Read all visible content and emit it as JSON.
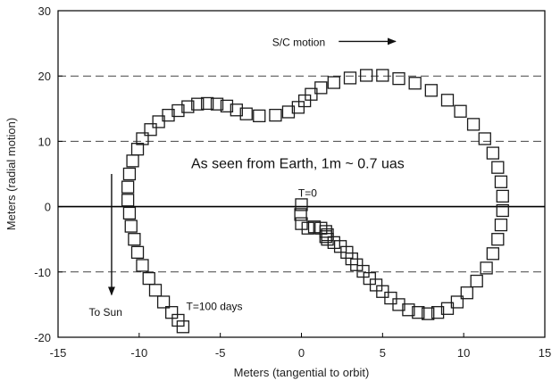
{
  "chart_data": {
    "type": "scatter",
    "title": "",
    "xlabel": "Meters (tangential to orbit)",
    "ylabel": "Meters (radial motion)",
    "xlim": [
      -15,
      15
    ],
    "ylim": [
      -20,
      30
    ],
    "x_ticks": [
      -15,
      -10,
      -5,
      0,
      5,
      10,
      15
    ],
    "y_ticks": [
      -20,
      -10,
      0,
      10,
      20,
      30
    ],
    "grid": "dashed horizontal lines at y = -10, 10, 20; solid line at y = 0",
    "marker": "open-square",
    "annotations": [
      {
        "text": "S/C motion",
        "x": -1.8,
        "y": 24.6
      },
      {
        "text": "As seen from Earth, 1m ~ 0.7 uas",
        "x": -6.8,
        "y": 5.9
      },
      {
        "text": "T=0",
        "x": -0.2,
        "y": 1.5
      },
      {
        "text": "T=100 days",
        "x": -7.1,
        "y": -15.8
      },
      {
        "text": "To Sun",
        "x": -13.1,
        "y": -16.7
      }
    ],
    "arrows": [
      {
        "name": "sc-motion-arrow",
        "from": [
          2.3,
          25.3
        ],
        "to": [
          5.8,
          25.3
        ]
      },
      {
        "name": "to-sun-arrow",
        "from": [
          -11.7,
          5.0
        ],
        "to": [
          -11.7,
          -13.5
        ]
      }
    ],
    "series": [
      {
        "points": [
          [
            0,
            0.3
          ],
          [
            -0.05,
            -1.2
          ],
          [
            0,
            -2.6
          ],
          [
            0.4,
            -3.3
          ],
          [
            0.8,
            -3.1
          ],
          [
            1.2,
            -3.3
          ],
          [
            1.5,
            -3.8
          ],
          [
            1.6,
            -4.3
          ],
          [
            1.5,
            -4.6
          ],
          [
            1.6,
            -5.0
          ],
          [
            2.0,
            -5.5
          ],
          [
            2.4,
            -6.1
          ],
          [
            2.8,
            -7.0
          ],
          [
            3.1,
            -8.0
          ],
          [
            3.4,
            -8.9
          ],
          [
            3.8,
            -9.9
          ],
          [
            4.2,
            -11.0
          ],
          [
            4.6,
            -12.0
          ],
          [
            5.0,
            -13.0
          ],
          [
            5.5,
            -14.0
          ],
          [
            6.0,
            -15.0
          ],
          [
            6.6,
            -15.8
          ],
          [
            7.2,
            -16.2
          ],
          [
            7.8,
            -16.4
          ],
          [
            8.4,
            -16.2
          ],
          [
            9.0,
            -15.6
          ],
          [
            9.6,
            -14.6
          ],
          [
            10.2,
            -13.2
          ],
          [
            10.8,
            -11.4
          ],
          [
            11.4,
            -9.4
          ],
          [
            11.8,
            -7.2
          ],
          [
            12.1,
            -5.0
          ],
          [
            12.3,
            -2.8
          ],
          [
            12.4,
            -0.6
          ],
          [
            12.4,
            1.6
          ],
          [
            12.3,
            3.8
          ],
          [
            12.1,
            6.0
          ],
          [
            11.8,
            8.2
          ],
          [
            11.3,
            10.4
          ],
          [
            10.6,
            12.6
          ],
          [
            9.8,
            14.6
          ],
          [
            9.0,
            16.3
          ],
          [
            8.0,
            17.8
          ],
          [
            7.0,
            18.9
          ],
          [
            6.0,
            19.6
          ],
          [
            5.0,
            20.1
          ],
          [
            4.0,
            20.1
          ],
          [
            3.0,
            19.7
          ],
          [
            2.0,
            19.0
          ],
          [
            1.2,
            18.2
          ],
          [
            0.6,
            17.2
          ],
          [
            0.2,
            16.2
          ],
          [
            -0.2,
            15.2
          ],
          [
            -0.8,
            14.5
          ],
          [
            -1.6,
            14.0
          ],
          [
            -2.6,
            13.9
          ],
          [
            -3.4,
            14.2
          ],
          [
            -4.0,
            14.8
          ],
          [
            -4.6,
            15.4
          ],
          [
            -5.2,
            15.7
          ],
          [
            -5.8,
            15.8
          ],
          [
            -6.4,
            15.7
          ],
          [
            -7.0,
            15.3
          ],
          [
            -7.6,
            14.7
          ],
          [
            -8.2,
            14.0
          ],
          [
            -8.8,
            13.0
          ],
          [
            -9.3,
            11.8
          ],
          [
            -9.8,
            10.4
          ],
          [
            -10.1,
            8.8
          ],
          [
            -10.4,
            7.0
          ],
          [
            -10.6,
            5.0
          ],
          [
            -10.7,
            3.0
          ],
          [
            -10.7,
            1.0
          ],
          [
            -10.6,
            -1.0
          ],
          [
            -10.5,
            -3.0
          ],
          [
            -10.3,
            -5.0
          ],
          [
            -10.1,
            -7.0
          ],
          [
            -9.8,
            -9.0
          ],
          [
            -9.4,
            -11.0
          ],
          [
            -9.0,
            -12.8
          ],
          [
            -8.5,
            -14.6
          ],
          [
            -8.0,
            -16.2
          ],
          [
            -7.6,
            -17.4
          ],
          [
            -7.3,
            -18.4
          ]
        ]
      }
    ]
  }
}
